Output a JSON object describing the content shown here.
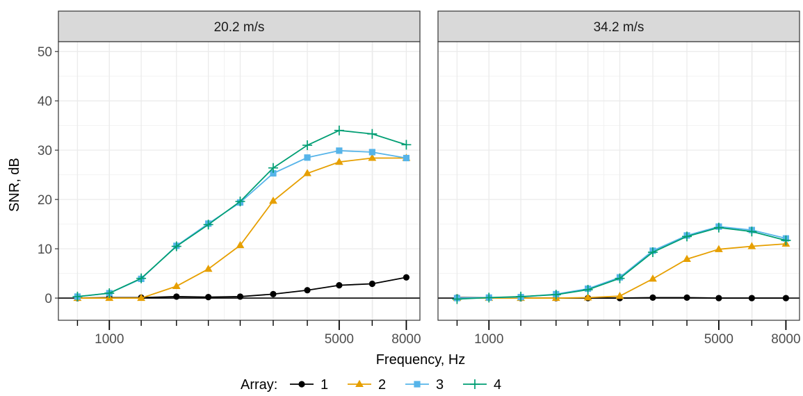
{
  "chart_data": {
    "type": "line",
    "x_scale": "log",
    "xlabel": "Frequency, Hz",
    "ylabel": "SNR, dB",
    "xlim": [
      700,
      8800
    ],
    "ylim": [
      -4.5,
      52
    ],
    "x_ticks": [
      1000,
      5000,
      8000
    ],
    "x_tick_labels": [
      "1000",
      "5000",
      "8000"
    ],
    "y_ticks": [
      0,
      10,
      20,
      30,
      40,
      50
    ],
    "y_tick_labels": [
      "0",
      "10",
      "20",
      "30",
      "40",
      "50"
    ],
    "grid": true,
    "legend_title": "Array:",
    "legend_position": "bottom",
    "x": [
      800,
      1000,
      1250,
      1600,
      2000,
      2500,
      3150,
      4000,
      5000,
      6300,
      8000
    ],
    "panels": [
      {
        "strip_label": "20.2 m/s",
        "series": [
          {
            "name": "1",
            "marker": "circle",
            "color": "#000000",
            "values": [
              0,
              0.1,
              0.1,
              0.3,
              0.2,
              0.3,
              0.8,
              1.6,
              2.6,
              2.9,
              4.2
            ]
          },
          {
            "name": "2",
            "marker": "triangle",
            "color": "#E69F00",
            "values": [
              0,
              0,
              0,
              2.4,
              5.9,
              10.7,
              19.7,
              25.3,
              27.6,
              28.4,
              28.4
            ]
          },
          {
            "name": "3",
            "marker": "square",
            "color": "#56B4E9",
            "values": [
              0.3,
              1.0,
              3.9,
              10.6,
              15.1,
              19.4,
              25.3,
              28.5,
              29.9,
              29.6,
              28.4
            ]
          },
          {
            "name": "4",
            "marker": "plus",
            "color": "#009E73",
            "values": [
              0.3,
              1.0,
              4.0,
              10.5,
              14.9,
              19.6,
              26.4,
              31.0,
              34.0,
              33.3,
              31.1
            ]
          }
        ]
      },
      {
        "strip_label": "34.2 m/s",
        "series": [
          {
            "name": "1",
            "marker": "circle",
            "color": "#000000",
            "values": [
              0.1,
              0.1,
              0,
              0,
              0,
              0,
              0.1,
              0.1,
              0,
              0,
              0
            ]
          },
          {
            "name": "2",
            "marker": "triangle",
            "color": "#E69F00",
            "values": [
              0,
              0,
              0,
              0,
              0.1,
              0.4,
              3.9,
              7.9,
              9.9,
              10.5,
              11.0
            ]
          },
          {
            "name": "3",
            "marker": "square",
            "color": "#56B4E9",
            "values": [
              0,
              0.1,
              0.2,
              0.8,
              1.9,
              4.2,
              9.6,
              12.7,
              14.5,
              13.8,
              12.1
            ]
          },
          {
            "name": "4",
            "marker": "plus",
            "color": "#009E73",
            "values": [
              -0.2,
              0.1,
              0.3,
              0.7,
              1.7,
              4.0,
              9.3,
              12.5,
              14.3,
              13.5,
              11.7
            ]
          }
        ]
      }
    ]
  }
}
